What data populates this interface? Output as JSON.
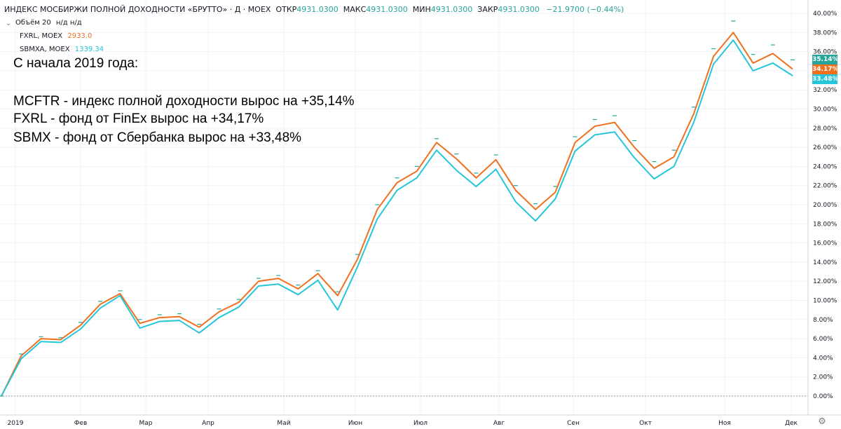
{
  "header": {
    "title": "ИНДЕКС МОСБИРЖИ ПОЛНОЙ ДОХОДНОСТИ «БРУТТО» · Д · MOEX",
    "open_label": "ОТКР",
    "open_value": "4931.0300",
    "high_label": "МАКС",
    "high_value": "4931.0300",
    "low_label": "МИН",
    "low_value": "4931.0300",
    "close_label": "ЗАКР",
    "close_value": "4931.0300",
    "change": "−21.9700 (−0.44%)"
  },
  "legend": {
    "volume_label": "Объём 20",
    "volume_values": "н/д  н/д",
    "series": [
      {
        "name": "FXRL, MOEX",
        "value": "2933.0",
        "color": "#f0701e"
      },
      {
        "name": "SBMXA, MOEX",
        "value": "1339.34",
        "color": "#26c6da"
      }
    ]
  },
  "caption": {
    "line1": "С начала 2019 года:",
    "line2": "MCFTR - индекс полной доходности вырос на +35,14%",
    "line3": "FXRL - фонд от FinEx вырос на +34,17%",
    "line4": "SBMX - фонд от Сбербанка вырос на +33,48%"
  },
  "price_tags": [
    {
      "label": "35.14%",
      "color": "#26a69a"
    },
    {
      "label": "34.17%",
      "color": "#f0701e"
    },
    {
      "label": "33.48%",
      "color": "#26c6da"
    }
  ],
  "icons": {
    "volume_toggle": "chevron-down-icon",
    "settings": "settings-icon"
  },
  "chart_data": {
    "type": "line",
    "x_ticks": [
      "2019",
      "Фев",
      "Мар",
      "Апр",
      "Май",
      "Июн",
      "Июл",
      "Авг",
      "Сен",
      "Окт",
      "Ноя",
      "Дек"
    ],
    "y_ticks": [
      "0.00%",
      "2.00%",
      "4.00%",
      "6.00%",
      "8.00%",
      "10.00%",
      "12.00%",
      "14.00%",
      "16.00%",
      "18.00%",
      "20.00%",
      "22.00%",
      "24.00%",
      "26.00%",
      "28.00%",
      "30.00%",
      "32.00%",
      "34.00%",
      "36.00%",
      "38.00%",
      "40.00%"
    ],
    "ylim": [
      0,
      40
    ],
    "grid": true,
    "series": [
      {
        "name": "FXRL, MOEX",
        "color": "#f0701e",
        "style": "line",
        "values": [
          0,
          4.2,
          6.0,
          5.9,
          7.4,
          9.6,
          10.7,
          7.6,
          8.2,
          8.3,
          7.2,
          8.8,
          9.8,
          12.0,
          12.3,
          11.2,
          12.8,
          10.5,
          14.3,
          19.5,
          22.3,
          23.5,
          26.5,
          24.8,
          22.8,
          24.7,
          21.5,
          19.5,
          21.3,
          26.5,
          28.2,
          28.6,
          26.0,
          23.8,
          25.0,
          29.5,
          35.5,
          38.0,
          34.8,
          35.8,
          34.17
        ]
      },
      {
        "name": "SBMXA, MOEX",
        "color": "#26c6da",
        "style": "line",
        "values": [
          0,
          3.9,
          5.7,
          5.6,
          7.0,
          9.2,
          10.5,
          7.1,
          7.8,
          7.9,
          6.6,
          8.2,
          9.3,
          11.5,
          11.7,
          10.6,
          12.1,
          9.0,
          13.5,
          18.5,
          21.5,
          22.8,
          25.7,
          23.6,
          21.9,
          23.7,
          20.3,
          18.3,
          20.6,
          25.6,
          27.3,
          27.6,
          24.9,
          22.7,
          24.0,
          28.6,
          34.7,
          37.2,
          34.0,
          34.8,
          33.48
        ]
      },
      {
        "name": "MCFTR",
        "color": "#26a69a",
        "style": "dash-markers",
        "values": [
          0,
          4.4,
          6.2,
          6.1,
          7.7,
          9.9,
          11.0,
          8.0,
          8.5,
          8.6,
          7.5,
          9.1,
          10.1,
          12.3,
          12.6,
          11.6,
          13.1,
          10.9,
          14.8,
          20.0,
          22.8,
          24.0,
          26.9,
          25.3,
          23.3,
          25.2,
          22.0,
          20.1,
          21.9,
          27.1,
          28.9,
          29.3,
          26.7,
          24.5,
          25.7,
          30.2,
          36.3,
          39.2,
          35.7,
          36.7,
          35.14
        ]
      }
    ]
  }
}
